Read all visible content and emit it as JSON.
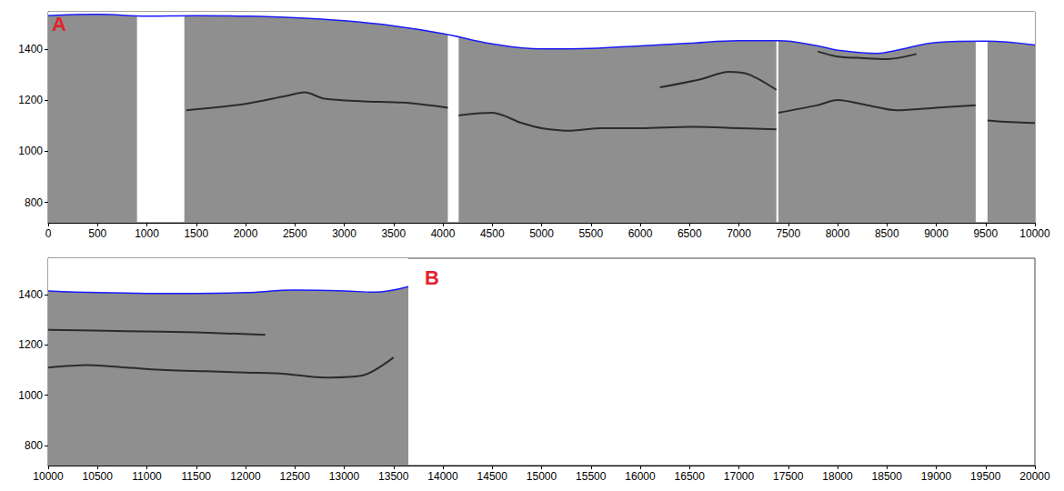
{
  "chart_data": [
    {
      "type": "line",
      "panel_label": "A",
      "xlim": [
        0,
        10000
      ],
      "xticks": [
        0,
        500,
        1000,
        1500,
        2000,
        2500,
        3000,
        3500,
        4000,
        4500,
        5000,
        5500,
        6000,
        6500,
        7000,
        7500,
        8000,
        8500,
        9000,
        9500,
        10000
      ],
      "ylim": [
        720,
        1545
      ],
      "yticks": [
        800,
        1000,
        1200,
        1400
      ],
      "grid": false,
      "color": "#1a1aff",
      "x": [
        0,
        500,
        1000,
        1500,
        2000,
        2500,
        3000,
        3500,
        4000,
        4500,
        5000,
        5500,
        6000,
        6500,
        7000,
        7400,
        7800,
        8000,
        8400,
        8600,
        9000,
        9500,
        10000
      ],
      "values": [
        1530,
        1535,
        1528,
        1530,
        1528,
        1522,
        1510,
        1490,
        1460,
        1420,
        1400,
        1402,
        1412,
        1422,
        1432,
        1432,
        1412,
        1395,
        1382,
        1395,
        1425,
        1430,
        1415
      ],
      "radargram_sections": [
        [
          0,
          900
        ],
        [
          1380,
          4050
        ],
        [
          4160,
          7380
        ],
        [
          7400,
          9400
        ],
        [
          9520,
          10000
        ]
      ],
      "reflectors": [
        {
          "x": [
            1400,
            2000,
            2400,
            2600,
            2800,
            3200,
            3600,
            4050
          ],
          "values": [
            1160,
            1185,
            1215,
            1230,
            1205,
            1195,
            1190,
            1170
          ]
        },
        {
          "x": [
            4160,
            4500,
            4800,
            5000,
            5300,
            5600,
            6000,
            6500,
            7000,
            7380
          ],
          "values": [
            1140,
            1150,
            1110,
            1090,
            1080,
            1090,
            1090,
            1095,
            1090,
            1085
          ]
        },
        {
          "x": [
            6200,
            6600,
            6900,
            7100,
            7380
          ],
          "values": [
            1250,
            1280,
            1310,
            1300,
            1240
          ]
        },
        {
          "x": [
            7400,
            7800,
            8000,
            8300,
            8600,
            9000,
            9400
          ],
          "values": [
            1150,
            1180,
            1200,
            1180,
            1160,
            1170,
            1180
          ]
        },
        {
          "x": [
            7800,
            8000,
            8200,
            8500,
            8800
          ],
          "values": [
            1390,
            1370,
            1365,
            1360,
            1380
          ]
        },
        {
          "x": [
            9520,
            9700,
            10000
          ],
          "values": [
            1120,
            1115,
            1110
          ]
        }
      ]
    },
    {
      "type": "line",
      "panel_label": "B",
      "xlim": [
        10000,
        20000
      ],
      "xticks": [
        10000,
        10500,
        11000,
        11500,
        12000,
        12500,
        13000,
        13500,
        14000,
        14500,
        15000,
        15500,
        16000,
        16500,
        17000,
        17500,
        18000,
        18500,
        19000,
        19500,
        20000
      ],
      "ylim": [
        720,
        1545
      ],
      "yticks": [
        800,
        1000,
        1200,
        1400
      ],
      "grid": false,
      "color": "#1a1aff",
      "x": [
        10000,
        10500,
        11000,
        11500,
        12000,
        12500,
        13000,
        13300,
        13650
      ],
      "values": [
        1415,
        1408,
        1405,
        1405,
        1408,
        1418,
        1415,
        1410,
        1432
      ],
      "radargram_sections": [
        [
          10000,
          13650
        ]
      ],
      "reflectors": [
        {
          "x": [
            10000,
            10400,
            10800,
            11200,
            11600,
            12000,
            12400,
            12800,
            13200,
            13500
          ],
          "values": [
            1110,
            1120,
            1110,
            1100,
            1095,
            1090,
            1085,
            1070,
            1080,
            1150
          ]
        },
        {
          "x": [
            10000,
            10800,
            11500,
            12200
          ],
          "values": [
            1260,
            1255,
            1250,
            1240
          ]
        }
      ]
    }
  ]
}
